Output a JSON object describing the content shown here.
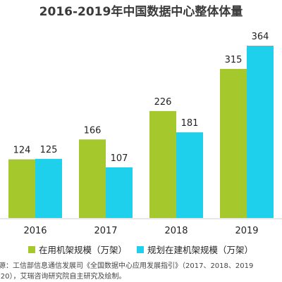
{
  "chart_data": {
    "type": "bar",
    "title": "2016-2019年中国数据中心整体体量",
    "categories": [
      "2016",
      "2017",
      "2018",
      "2019"
    ],
    "series": [
      {
        "name": "在用机架规模（万架）",
        "values": [
          124,
          166,
          226,
          315
        ],
        "color": "#a5c92c"
      },
      {
        "name": "规划在建机架规模（万架）",
        "values": [
          125,
          107,
          181,
          364
        ],
        "color": "#1fd0ec"
      }
    ],
    "ylim": [
      0,
      364
    ],
    "grid": false,
    "legend_position": "bottom"
  },
  "source": {
    "line1": "来源：工信部信息通信发展司《全国数据中心应用发展指引》（2017、2018、2019",
    "line2": "2020），艾瑞咨询研究院自主研究及绘制。"
  }
}
